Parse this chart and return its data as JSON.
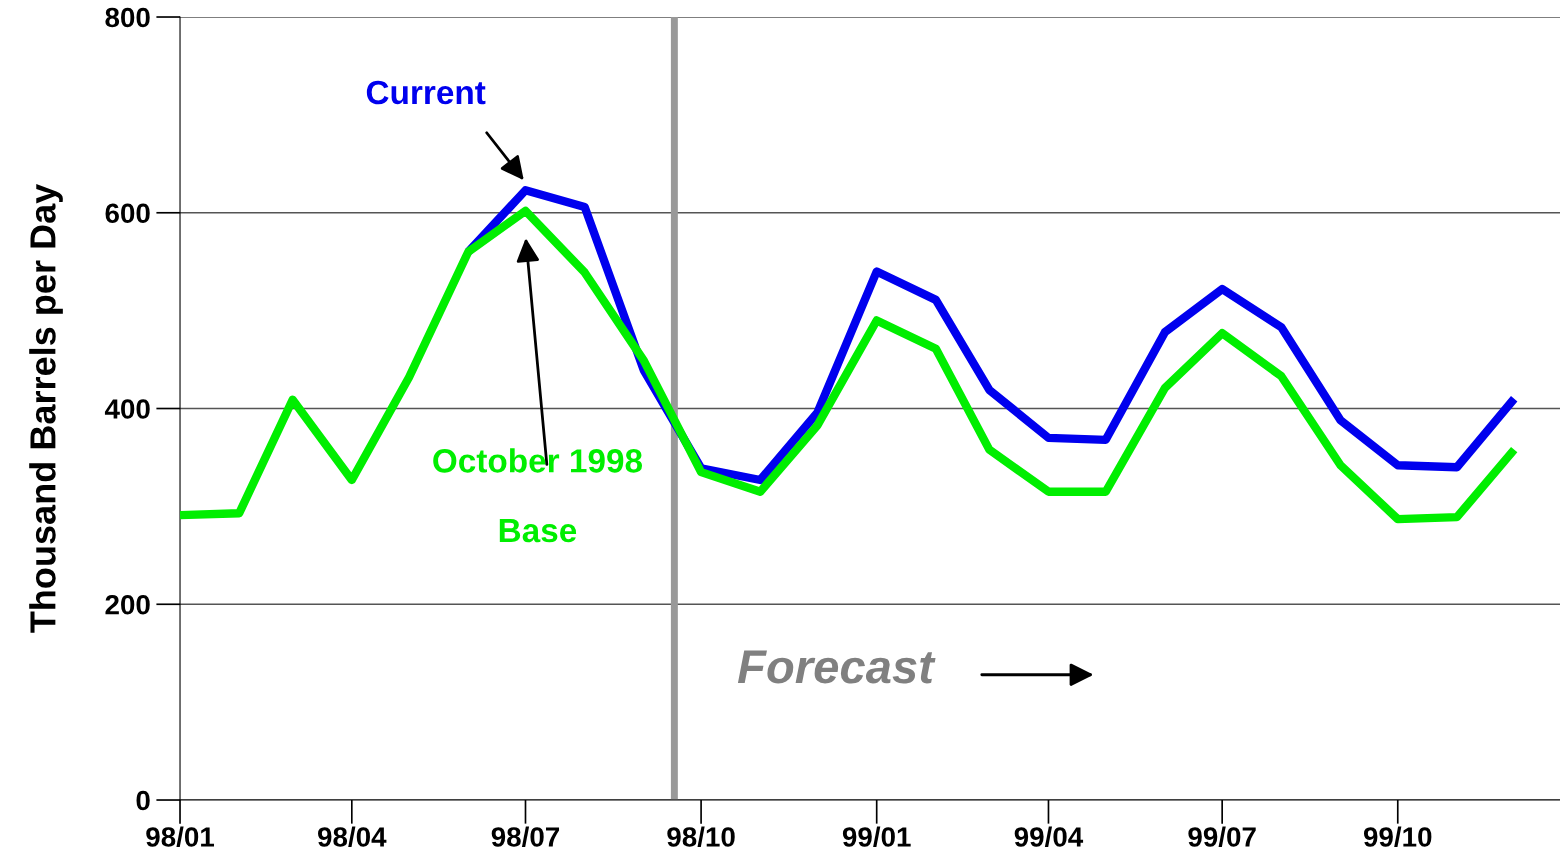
{
  "chart_data": {
    "type": "line",
    "ylabel": "Thousand Barrels per Day",
    "x": [
      "1998-01",
      "1998-02",
      "1998-03",
      "1998-04",
      "1998-05",
      "1998-06",
      "1998-07",
      "1998-08",
      "1998-09",
      "1998-10",
      "1998-11",
      "1998-12",
      "1999-01",
      "1999-02",
      "1999-03",
      "1999-04",
      "1999-05",
      "1999-06",
      "1999-07",
      "1999-08",
      "1999-09",
      "1999-10",
      "1999-11",
      "1999-12"
    ],
    "series": [
      {
        "name": "Current",
        "color": "#0000ee",
        "values": [
          null,
          null,
          null,
          null,
          null,
          560,
          623,
          606,
          439,
          339,
          327,
          396,
          540,
          511,
          419,
          370,
          368,
          478,
          522,
          483,
          388,
          342,
          340,
          410
        ]
      },
      {
        "name": "October 1998\nBase",
        "color": "#00ee00",
        "values": [
          291,
          293,
          409,
          327,
          432,
          560,
          602,
          539,
          449,
          335,
          315,
          383,
          490,
          461,
          358,
          315,
          315,
          421,
          477,
          433,
          342,
          287,
          289,
          358
        ]
      }
    ],
    "ylim": [
      0,
      800
    ],
    "yticks": [
      0,
      200,
      400,
      600,
      800
    ],
    "xlim": [
      "1998-01",
      "1999-12-25"
    ],
    "xticks": [
      {
        "value": "1998-01",
        "label": "98/01"
      },
      {
        "value": "1998-04",
        "label": "98/04"
      },
      {
        "value": "1998-07",
        "label": "98/07"
      },
      {
        "value": "1998-10",
        "label": "98/10"
      },
      {
        "value": "1999-01",
        "label": "99/01"
      },
      {
        "value": "1999-04",
        "label": "99/04"
      },
      {
        "value": "1999-07",
        "label": "99/07"
      },
      {
        "value": "1999-10",
        "label": "99/10"
      }
    ],
    "ref_lines": [
      {
        "axis": "x",
        "value": "1998-09-17",
        "label": null,
        "color": "#999999"
      }
    ],
    "annotations": [
      "Forecast"
    ],
    "grid": "y",
    "legend": false,
    "line_style": "solid",
    "marker": "none"
  }
}
